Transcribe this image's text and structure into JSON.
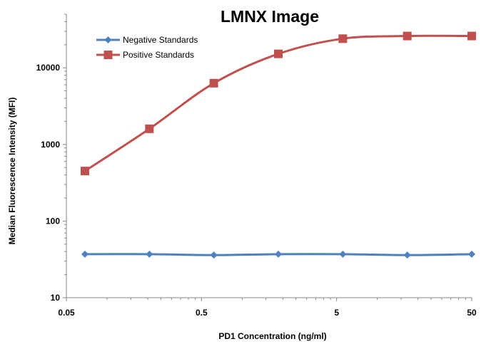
{
  "chart_data": {
    "type": "line",
    "title": "LMNX Image",
    "xlabel": "PD1 Concentration (ng/ml)",
    "ylabel": "Median Fluorescence Intensity (MFI)",
    "xscale": "log",
    "yscale": "log",
    "xlim": [
      0.05,
      50
    ],
    "ylim": [
      10,
      50000
    ],
    "xticks": [
      0.05,
      0.5,
      5,
      50
    ],
    "xtick_labels": [
      "0.05",
      "0.5",
      "5",
      "50"
    ],
    "yticks": [
      10,
      100,
      1000,
      10000
    ],
    "ytick_labels": [
      "10",
      "100",
      "1000",
      "10000"
    ],
    "grid": false,
    "legend_position": "top-left",
    "x": [
      0.0686,
      0.2058,
      0.617,
      1.852,
      5.556,
      16.67,
      50
    ],
    "series": [
      {
        "name": "Negative Standards",
        "color": "#4f81bd",
        "marker": "diamond",
        "values": [
          37,
          37,
          36,
          37,
          37,
          36,
          37
        ]
      },
      {
        "name": "Positive Standards",
        "color": "#c0504d",
        "marker": "square",
        "values": [
          450,
          1600,
          6300,
          15200,
          24000,
          26000,
          26000
        ]
      }
    ]
  }
}
